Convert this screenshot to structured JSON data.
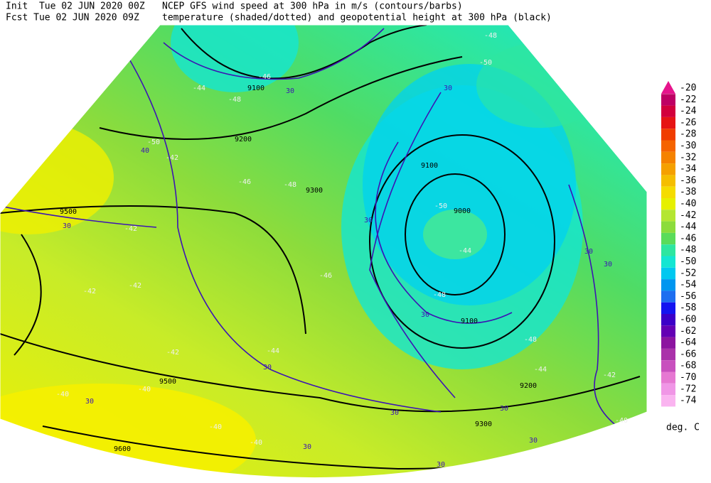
{
  "header": {
    "init": "Init  Tue 02 JUN 2020 00Z",
    "fcst": "Fcst Tue 02 JUN 2020 09Z",
    "line1": "NCEP GFS wind speed at 300 hPa in m/s (contours/barbs)",
    "line2": "temperature (shaded/dotted) and geopotential height at 300 hPa (black)"
  },
  "colorbar": {
    "unit": "deg. C",
    "items": [
      {
        "value": -20,
        "color": "#e6148c"
      },
      {
        "value": -22,
        "color": "#be0064"
      },
      {
        "value": -24,
        "color": "#d2003c"
      },
      {
        "value": -26,
        "color": "#e61414"
      },
      {
        "value": -28,
        "color": "#f03c00"
      },
      {
        "value": -30,
        "color": "#f56400"
      },
      {
        "value": -32,
        "color": "#f58200"
      },
      {
        "value": -34,
        "color": "#f5a000"
      },
      {
        "value": -36,
        "color": "#f5be00"
      },
      {
        "value": -38,
        "color": "#f5dc00"
      },
      {
        "value": -40,
        "color": "#e6f000"
      },
      {
        "value": -42,
        "color": "#b4e632"
      },
      {
        "value": -44,
        "color": "#8cdc3c"
      },
      {
        "value": -46,
        "color": "#5adc5a"
      },
      {
        "value": -48,
        "color": "#2ee6a0"
      },
      {
        "value": -50,
        "color": "#14e6d2"
      },
      {
        "value": -52,
        "color": "#00c8f0"
      },
      {
        "value": -54,
        "color": "#0096f0"
      },
      {
        "value": -56,
        "color": "#1e6ef0"
      },
      {
        "value": -58,
        "color": "#1414f0"
      },
      {
        "value": -60,
        "color": "#3c00c8"
      },
      {
        "value": -62,
        "color": "#6400b4"
      },
      {
        "value": -64,
        "color": "#8c14a0"
      },
      {
        "value": -66,
        "color": "#aa32aa"
      },
      {
        "value": -68,
        "color": "#c850be"
      },
      {
        "value": -70,
        "color": "#e678d2"
      },
      {
        "value": -72,
        "color": "#f096e6"
      },
      {
        "value": -74,
        "color": "#fab4f0"
      }
    ]
  },
  "map": {
    "labels": [
      "9100",
      "30",
      "-48",
      "-44",
      "-46",
      "9200",
      "-50",
      "40",
      "-42",
      "-48",
      "-46",
      "9300",
      "9500",
      "30",
      "-42",
      "30",
      "-46",
      "-42",
      "-42",
      "9100",
      "9000",
      "-50",
      "-44",
      "-48",
      "9100",
      "30",
      "-48",
      "-44",
      "9200",
      "30",
      "-42",
      "-44",
      "30",
      "9500",
      "-40",
      "-40",
      "30",
      "30",
      "9300",
      "-40",
      "-40",
      "9600",
      "30",
      "30",
      "30",
      "-50",
      "-48",
      "30",
      "30",
      "30",
      "-42",
      "-40"
    ]
  }
}
